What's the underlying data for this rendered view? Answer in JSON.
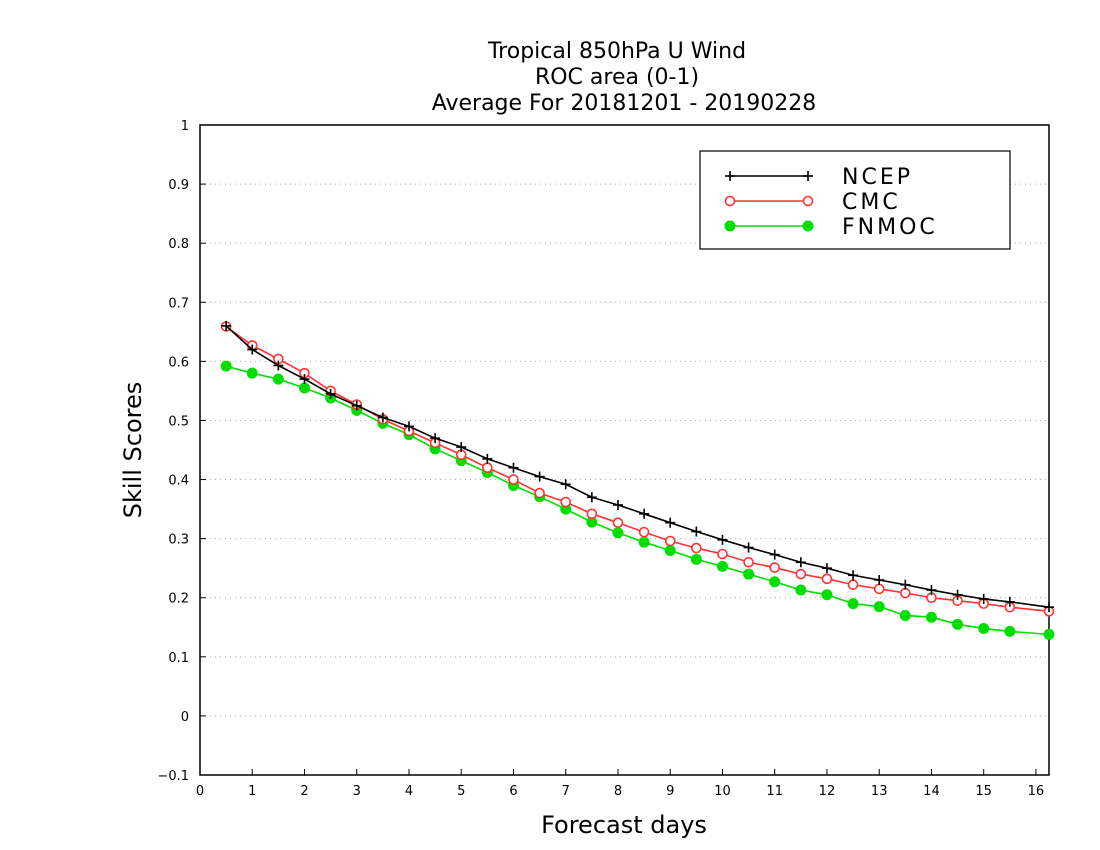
{
  "chart_data": {
    "type": "line",
    "title": [
      "Tropical 850hPa U Wind",
      "ROC area (0-1)",
      "Average For 20181201 - 20190228"
    ],
    "xlabel": "Forecast days",
    "ylabel": "Skill Scores",
    "xlim": [
      0,
      16.25
    ],
    "ylim": [
      -0.1,
      1
    ],
    "xticks": [
      0,
      1,
      2,
      3,
      4,
      5,
      6,
      7,
      8,
      9,
      10,
      11,
      12,
      13,
      14,
      15,
      16
    ],
    "yticks": [
      -0.1,
      0,
      0.1,
      0.2,
      0.3,
      0.4,
      0.5,
      0.6,
      0.7,
      0.8,
      0.9,
      1
    ],
    "ytick_labels": [
      "−0.1",
      "0",
      "0.1",
      "0.2",
      "0.3",
      "0.4",
      "0.5",
      "0.6",
      "0.7",
      "0.8",
      "0.9",
      "1"
    ],
    "grid": "horizontal dotted",
    "legend_position": "top-right",
    "x": [
      0.5,
      1,
      1.5,
      2,
      2.5,
      3,
      3.5,
      4,
      4.5,
      5,
      5.5,
      6,
      6.5,
      7,
      7.5,
      8,
      8.5,
      9,
      9.5,
      10,
      10.5,
      11,
      11.5,
      12,
      12.5,
      13,
      13.5,
      14,
      14.5,
      15,
      15.5,
      16.25
    ],
    "series": [
      {
        "name": "NCEP",
        "color": "#000000",
        "marker": "plus",
        "values": [
          0.66,
          0.62,
          0.593,
          0.57,
          0.545,
          0.525,
          0.505,
          0.49,
          0.47,
          0.455,
          0.435,
          0.42,
          0.405,
          0.392,
          0.37,
          0.357,
          0.342,
          0.327,
          0.312,
          0.298,
          0.285,
          0.273,
          0.26,
          0.25,
          0.238,
          0.23,
          0.222,
          0.213,
          0.205,
          0.198,
          0.193,
          0.184
        ]
      },
      {
        "name": "CMC",
        "color": "#ff3333",
        "marker": "open-circle",
        "values": [
          0.659,
          0.627,
          0.604,
          0.58,
          0.55,
          0.527,
          0.502,
          0.482,
          0.462,
          0.442,
          0.42,
          0.4,
          0.377,
          0.362,
          0.342,
          0.327,
          0.311,
          0.296,
          0.284,
          0.274,
          0.26,
          0.251,
          0.24,
          0.232,
          0.222,
          0.215,
          0.208,
          0.2,
          0.195,
          0.19,
          0.184,
          0.177
        ]
      },
      {
        "name": "FNMOC",
        "color": "#00dd00",
        "marker": "filled-circle",
        "values": [
          0.592,
          0.58,
          0.57,
          0.555,
          0.538,
          0.517,
          0.495,
          0.476,
          0.452,
          0.432,
          0.412,
          0.39,
          0.371,
          0.35,
          0.328,
          0.31,
          0.294,
          0.28,
          0.265,
          0.253,
          0.24,
          0.227,
          0.213,
          0.205,
          0.19,
          0.185,
          0.17,
          0.167,
          0.155,
          0.148,
          0.143,
          0.138
        ]
      }
    ]
  }
}
